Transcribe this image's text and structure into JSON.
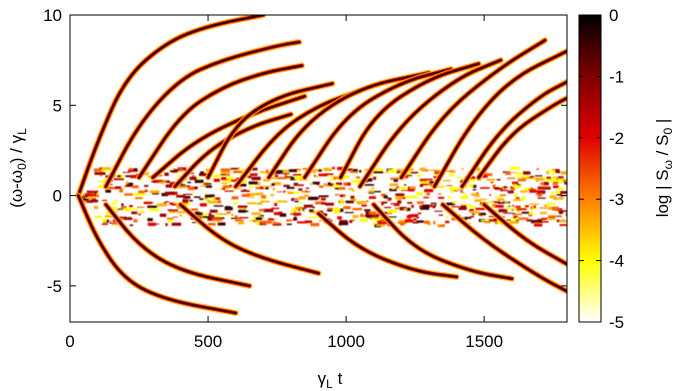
{
  "chart_data": {
    "type": "heatmap",
    "title": "",
    "xlabel": {
      "base": "γ",
      "sub": "L",
      "rest": " t"
    },
    "ylabel": {
      "p1": "(ω-ω",
      "sub1": "0",
      "p2": ") / γ",
      "sub2": "L"
    },
    "colorbar_label": {
      "p1": "log | S",
      "sub1": "ω",
      "p2": " / S",
      "sub2": "0",
      "p3": " |"
    },
    "xlim": [
      0,
      1800
    ],
    "ylim": [
      -7,
      10
    ],
    "clim": [
      -5,
      0
    ],
    "x_ticks": [
      0,
      500,
      1000,
      1500
    ],
    "x_tick_labels": [
      "0",
      "500",
      "1000",
      "1500"
    ],
    "y_ticks": [
      -5,
      0,
      5,
      10
    ],
    "y_tick_labels": [
      "-5",
      "0",
      "5",
      "10"
    ],
    "colorbar_ticks": [
      0,
      -1,
      -2,
      -3,
      -4,
      -5
    ],
    "colorbar_tick_labels": [
      "0",
      "-1",
      "-2",
      "-3",
      "-4",
      "-5"
    ],
    "colormap": [
      "#ffffff",
      "#ffff00",
      "#ff8000",
      "#e00000",
      "#800000",
      "#000000"
    ],
    "grid": false,
    "spectral_branches": [
      {
        "x": [
          30,
          100,
          200,
          350,
          500,
          700
        ],
        "y": [
          0,
          3,
          6.5,
          8.5,
          9.4,
          10
        ]
      },
      {
        "x": [
          30,
          100,
          200,
          350,
          600
        ],
        "y": [
          0,
          -2.5,
          -4.7,
          -5.8,
          -6.5
        ]
      },
      {
        "x": [
          130,
          250,
          400,
          550,
          750,
          830
        ],
        "y": [
          0.5,
          4,
          6.5,
          7.5,
          8.3,
          8.5
        ]
      },
      {
        "x": [
          130,
          250,
          400,
          650
        ],
        "y": [
          -0.5,
          -2.8,
          -4.2,
          -5.0
        ]
      },
      {
        "x": [
          250,
          400,
          550,
          700,
          840
        ],
        "y": [
          1,
          4.5,
          6,
          6.8,
          7.2
        ]
      },
      {
        "x": [
          300,
          450,
          650,
          850
        ],
        "y": [
          1,
          3,
          4.5,
          5.5
        ]
      },
      {
        "x": [
          380,
          500,
          650,
          800
        ],
        "y": [
          0.5,
          2.5,
          3.8,
          4.5
        ]
      },
      {
        "x": [
          400,
          550,
          700,
          900
        ],
        "y": [
          -0.5,
          -2.5,
          -3.5,
          -4.3
        ]
      },
      {
        "x": [
          500,
          600,
          750,
          950
        ],
        "y": [
          1,
          4,
          5.5,
          6.2
        ]
      },
      {
        "x": [
          600,
          750,
          900,
          1050
        ],
        "y": [
          0.5,
          3.5,
          5,
          5.8
        ]
      },
      {
        "x": [
          720,
          850,
          1050,
          1300
        ],
        "y": [
          1,
          4,
          6,
          6.8
        ]
      },
      {
        "x": [
          850,
          1000,
          1200,
          1380
        ],
        "y": [
          1,
          4.5,
          6.3,
          7.0
        ]
      },
      {
        "x": [
          900,
          1050,
          1250,
          1400
        ],
        "y": [
          -1,
          -3,
          -4.2,
          -4.5
        ]
      },
      {
        "x": [
          980,
          1100,
          1300,
          1480
        ],
        "y": [
          1,
          4.5,
          6.5,
          7.3
        ]
      },
      {
        "x": [
          1050,
          1200,
          1400,
          1560
        ],
        "y": [
          0.5,
          4,
          6.5,
          7.5
        ]
      },
      {
        "x": [
          1100,
          1250,
          1450,
          1600
        ],
        "y": [
          -0.5,
          -3,
          -4.2,
          -4.6
        ]
      },
      {
        "x": [
          1200,
          1350,
          1550,
          1720
        ],
        "y": [
          1,
          4.5,
          7,
          8.6
        ]
      },
      {
        "x": [
          1320,
          1450,
          1600,
          1800
        ],
        "y": [
          0.5,
          4,
          6.5,
          8.0
        ]
      },
      {
        "x": [
          1420,
          1550,
          1700,
          1800
        ],
        "y": [
          0.5,
          3.5,
          5.5,
          6.3
        ]
      },
      {
        "x": [
          1350,
          1500,
          1700,
          1800
        ],
        "y": [
          -0.5,
          -2.5,
          -4.5,
          -5.3
        ]
      },
      {
        "x": [
          1500,
          1650,
          1800
        ],
        "y": [
          -0.5,
          -2.5,
          -3.8
        ]
      },
      {
        "x": [
          1480,
          1600,
          1750,
          1800
        ],
        "y": [
          1,
          3.5,
          5,
          5.4
        ]
      }
    ]
  }
}
